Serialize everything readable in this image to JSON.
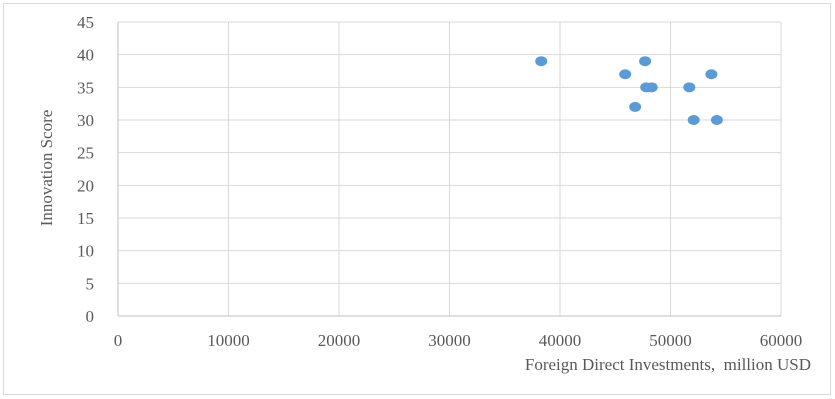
{
  "chart_data": {
    "type": "scatter",
    "title": "",
    "xlabel": "Foreign Direct Investments,  million USD",
    "ylabel": "Innovation Score",
    "xlim": [
      0,
      60000
    ],
    "ylim": [
      0,
      45
    ],
    "xticks": [
      0,
      10000,
      20000,
      30000,
      40000,
      50000,
      60000
    ],
    "yticks": [
      0,
      5,
      10,
      15,
      20,
      25,
      30,
      35,
      40,
      45
    ],
    "grid": true,
    "legend": "none",
    "marker_color": "#5b9bd5",
    "series": [
      {
        "points": [
          {
            "x": 38300,
            "y": 39
          },
          {
            "x": 47700,
            "y": 39
          },
          {
            "x": 45900,
            "y": 37
          },
          {
            "x": 53700,
            "y": 37
          },
          {
            "x": 47800,
            "y": 35
          },
          {
            "x": 48300,
            "y": 35
          },
          {
            "x": 51700,
            "y": 35
          },
          {
            "x": 46800,
            "y": 32
          },
          {
            "x": 52100,
            "y": 30
          },
          {
            "x": 54200,
            "y": 30
          }
        ]
      }
    ]
  }
}
